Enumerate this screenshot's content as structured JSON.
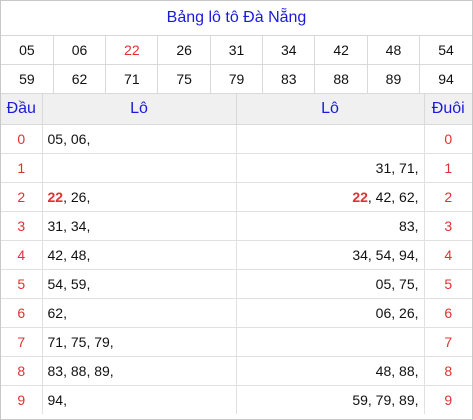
{
  "title": "Bảng lô tô Đà Nẵng",
  "numbers_row1": [
    "05",
    "06",
    "22",
    "26",
    "31",
    "34",
    "42",
    "48",
    "54"
  ],
  "numbers_row2": [
    "59",
    "62",
    "71",
    "75",
    "79",
    "83",
    "88",
    "89",
    "94"
  ],
  "highlight_number": "22",
  "headers": {
    "dau": "Đầu",
    "lo_left": "Lô",
    "lo_right": "Lô",
    "duoi": "Đuôi"
  },
  "rows": [
    {
      "dau": "0",
      "left": [
        "05",
        "06"
      ],
      "right": [],
      "duoi": "0"
    },
    {
      "dau": "1",
      "left": [],
      "right": [
        "31",
        "71"
      ],
      "duoi": "1"
    },
    {
      "dau": "2",
      "left": [
        "22",
        "26"
      ],
      "right": [
        "22",
        "42",
        "62"
      ],
      "duoi": "2"
    },
    {
      "dau": "3",
      "left": [
        "31",
        "34"
      ],
      "right": [
        "83"
      ],
      "duoi": "3"
    },
    {
      "dau": "4",
      "left": [
        "42",
        "48"
      ],
      "right": [
        "34",
        "54",
        "94"
      ],
      "duoi": "4"
    },
    {
      "dau": "5",
      "left": [
        "54",
        "59"
      ],
      "right": [
        "05",
        "75"
      ],
      "duoi": "5"
    },
    {
      "dau": "6",
      "left": [
        "62"
      ],
      "right": [
        "06",
        "26"
      ],
      "duoi": "6"
    },
    {
      "dau": "7",
      "left": [
        "71",
        "75",
        "79"
      ],
      "right": [],
      "duoi": "7"
    },
    {
      "dau": "8",
      "left": [
        "83",
        "88",
        "89"
      ],
      "right": [
        "48",
        "88"
      ],
      "duoi": "8"
    },
    {
      "dau": "9",
      "left": [
        "94"
      ],
      "right": [
        "59",
        "79",
        "89"
      ],
      "duoi": "9"
    }
  ],
  "colors": {
    "title": "#1a1adb",
    "highlight": "#e23030",
    "header_bg": "#f0f0f0"
  }
}
